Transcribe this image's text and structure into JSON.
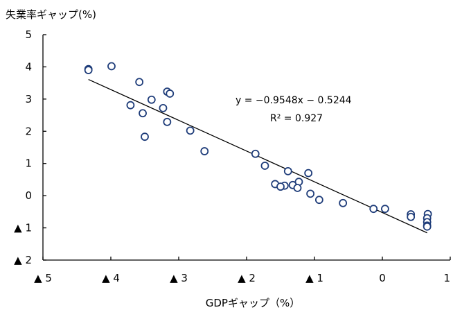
{
  "chart_data": {
    "type": "scatter",
    "ylabel": "失業率ギャップ(%)",
    "xlabel": "GDPギャップ（%）",
    "xlim": [
      -5,
      1
    ],
    "ylim": [
      -2,
      5
    ],
    "x_ticks": [
      {
        "value": -5,
        "label": "▲ 5"
      },
      {
        "value": -4,
        "label": "▲ 4"
      },
      {
        "value": -3,
        "label": "▲ 3"
      },
      {
        "value": -2,
        "label": "▲ 2"
      },
      {
        "value": -1,
        "label": "▲ 1"
      },
      {
        "value": 0,
        "label": "0"
      },
      {
        "value": 1,
        "label": "1"
      }
    ],
    "y_ticks": [
      {
        "value": 5,
        "label": "5"
      },
      {
        "value": 4,
        "label": "4"
      },
      {
        "value": 3,
        "label": "3"
      },
      {
        "value": 2,
        "label": "2"
      },
      {
        "value": 1,
        "label": "1"
      },
      {
        "value": 0,
        "label": "0"
      },
      {
        "value": -1,
        "label": "▲ 1"
      },
      {
        "value": -2,
        "label": "▲ 2"
      }
    ],
    "points": [
      {
        "x": -4.33,
        "y": 3.93
      },
      {
        "x": -4.33,
        "y": 3.9
      },
      {
        "x": -3.99,
        "y": 4.02
      },
      {
        "x": -3.58,
        "y": 3.53
      },
      {
        "x": -3.17,
        "y": 3.23
      },
      {
        "x": -3.13,
        "y": 3.17
      },
      {
        "x": -3.4,
        "y": 2.98
      },
      {
        "x": -3.71,
        "y": 2.81
      },
      {
        "x": -3.23,
        "y": 2.72
      },
      {
        "x": -3.53,
        "y": 2.56
      },
      {
        "x": -3.17,
        "y": 2.29
      },
      {
        "x": -2.83,
        "y": 2.02
      },
      {
        "x": -3.5,
        "y": 1.83
      },
      {
        "x": -2.62,
        "y": 1.38
      },
      {
        "x": -1.87,
        "y": 1.3
      },
      {
        "x": -1.73,
        "y": 0.93
      },
      {
        "x": -1.39,
        "y": 0.76
      },
      {
        "x": -1.09,
        "y": 0.7
      },
      {
        "x": -1.23,
        "y": 0.43
      },
      {
        "x": -1.58,
        "y": 0.36
      },
      {
        "x": -1.32,
        "y": 0.33
      },
      {
        "x": -1.44,
        "y": 0.31
      },
      {
        "x": -1.5,
        "y": 0.28
      },
      {
        "x": -1.25,
        "y": 0.24
      },
      {
        "x": -1.06,
        "y": 0.06
      },
      {
        "x": -0.93,
        "y": -0.13
      },
      {
        "x": -0.58,
        "y": -0.23
      },
      {
        "x": -0.13,
        "y": -0.41
      },
      {
        "x": 0.04,
        "y": -0.41
      },
      {
        "x": 0.42,
        "y": -0.58
      },
      {
        "x": 0.42,
        "y": -0.66
      },
      {
        "x": 0.67,
        "y": -0.57
      },
      {
        "x": 0.66,
        "y": -0.7
      },
      {
        "x": 0.66,
        "y": -0.82
      },
      {
        "x": 0.66,
        "y": -0.93
      },
      {
        "x": 0.66,
        "y": -0.96
      }
    ],
    "trendline": {
      "slope": -0.9548,
      "intercept": -0.5244,
      "x_range": [
        -4.33,
        0.66
      ],
      "equation": "y = −0.9548x − 0.5244",
      "r2": "R² = 0.927"
    },
    "grid": false,
    "legend": "none"
  }
}
